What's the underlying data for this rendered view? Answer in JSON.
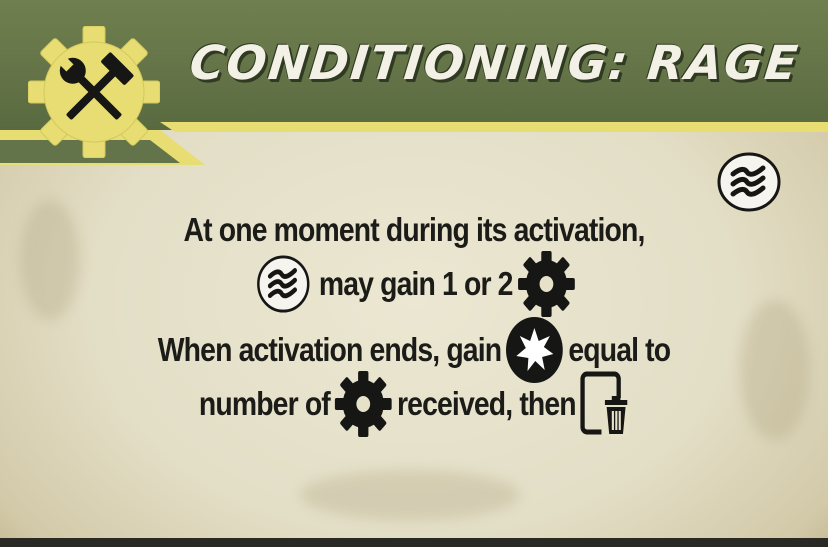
{
  "card": {
    "title": "CONDITIONING: RAGE",
    "logo_icon": "gear-hammer-wrench-icon",
    "corner_icon": "rage-claw-icon",
    "colors": {
      "header_green": "#637347",
      "accent_yellow": "#e8dd72",
      "parchment": "#e6e1c9",
      "text": "#1b1b18"
    }
  },
  "rules": {
    "line1": "At one moment during its activation,",
    "line2_text": "may gain 1 or 2",
    "line2_icons": [
      "rage-claw-icon",
      "gear-token-icon"
    ],
    "line3_a": "When activation ends, gain",
    "line3_b": "equal to",
    "line3_icon": "starburst-icon",
    "line4_a": "number of",
    "line4_b": "received, then",
    "line4_icons": [
      "gear-token-icon",
      "discard-card-icon"
    ]
  }
}
